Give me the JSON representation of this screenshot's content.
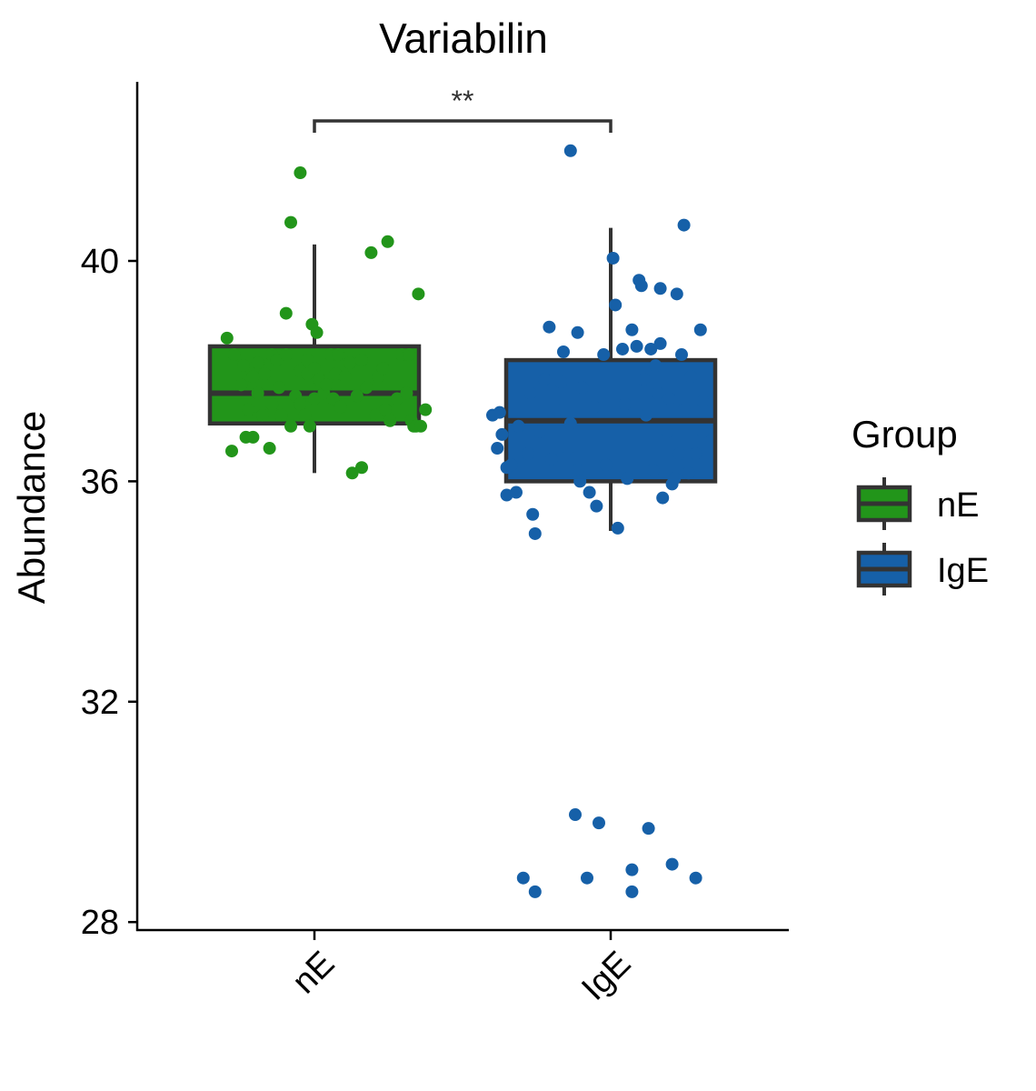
{
  "chart_data": {
    "type": "box",
    "title": "Variabilin",
    "xlabel": "",
    "ylabel": "Abundance",
    "ylim": [
      27.9,
      43.2
    ],
    "yticks": [
      28,
      32,
      36,
      40
    ],
    "categories": [
      "nE",
      "IgE"
    ],
    "legend": {
      "title": "Group",
      "placement": "right",
      "entries": [
        "nE",
        "IgE"
      ]
    },
    "significance": {
      "label": "**",
      "between": [
        "nE",
        "IgE"
      ]
    },
    "series": [
      {
        "name": "nE",
        "color": "#22951a",
        "box": {
          "whisker_low": 36.15,
          "q1": 37.05,
          "median": 37.6,
          "q3": 38.45,
          "whisker_high": 40.3
        },
        "points": [
          {
            "dx": -0.37,
            "y": 38.6
          },
          {
            "dx": -0.35,
            "y": 36.55
          },
          {
            "dx": -0.34,
            "y": 38.3
          },
          {
            "dx": -0.31,
            "y": 37.75
          },
          {
            "dx": -0.3,
            "y": 38.1
          },
          {
            "dx": -0.29,
            "y": 36.8
          },
          {
            "dx": -0.28,
            "y": 37.3
          },
          {
            "dx": -0.26,
            "y": 36.8
          },
          {
            "dx": -0.26,
            "y": 37.9
          },
          {
            "dx": -0.24,
            "y": 37.6
          },
          {
            "dx": -0.22,
            "y": 37.2
          },
          {
            "dx": -0.24,
            "y": 38.15
          },
          {
            "dx": -0.19,
            "y": 36.6
          },
          {
            "dx": -0.18,
            "y": 37.4
          },
          {
            "dx": -0.21,
            "y": 37.95
          },
          {
            "dx": -0.18,
            "y": 38.3
          },
          {
            "dx": -0.16,
            "y": 38.2
          },
          {
            "dx": -0.15,
            "y": 37.7
          },
          {
            "dx": -0.14,
            "y": 37.2
          },
          {
            "dx": -0.12,
            "y": 39.05
          },
          {
            "dx": -0.12,
            "y": 38.3
          },
          {
            "dx": -0.1,
            "y": 37.0
          },
          {
            "dx": -0.1,
            "y": 40.7
          },
          {
            "dx": -0.08,
            "y": 37.55
          },
          {
            "dx": -0.06,
            "y": 38.0
          },
          {
            "dx": -0.06,
            "y": 37.4
          },
          {
            "dx": -0.04,
            "y": 37.2
          },
          {
            "dx": -0.03,
            "y": 38.2
          },
          {
            "dx": -0.03,
            "y": 37.95
          },
          {
            "dx": -0.02,
            "y": 37.0
          },
          {
            "dx": -0.01,
            "y": 38.85
          },
          {
            "dx": 0.0,
            "y": 37.5
          },
          {
            "dx": 0.01,
            "y": 38.7
          },
          {
            "dx": 0.0,
            "y": 38.05
          },
          {
            "dx": -0.06,
            "y": 41.6
          },
          {
            "dx": 0.02,
            "y": 37.85
          },
          {
            "dx": 0.04,
            "y": 37.6
          },
          {
            "dx": 0.05,
            "y": 37.75
          },
          {
            "dx": 0.07,
            "y": 38.3
          },
          {
            "dx": 0.08,
            "y": 37.5
          },
          {
            "dx": 0.09,
            "y": 37.95
          },
          {
            "dx": 0.1,
            "y": 38.3
          },
          {
            "dx": 0.11,
            "y": 37.35
          },
          {
            "dx": 0.13,
            "y": 37.9
          },
          {
            "dx": 0.15,
            "y": 38.15
          },
          {
            "dx": 0.16,
            "y": 36.15
          },
          {
            "dx": 0.18,
            "y": 37.55
          },
          {
            "dx": 0.2,
            "y": 38.2
          },
          {
            "dx": 0.2,
            "y": 36.25
          },
          {
            "dx": 0.22,
            "y": 37.7
          },
          {
            "dx": 0.24,
            "y": 40.15
          },
          {
            "dx": 0.26,
            "y": 37.2
          },
          {
            "dx": 0.27,
            "y": 37.9
          },
          {
            "dx": 0.29,
            "y": 38.05
          },
          {
            "dx": 0.3,
            "y": 37.3
          },
          {
            "dx": 0.31,
            "y": 40.35
          },
          {
            "dx": 0.32,
            "y": 37.1
          },
          {
            "dx": 0.35,
            "y": 37.5
          },
          {
            "dx": 0.37,
            "y": 38.3
          },
          {
            "dx": 0.39,
            "y": 37.6
          },
          {
            "dx": 0.4,
            "y": 38.3
          },
          {
            "dx": 0.41,
            "y": 37.1
          },
          {
            "dx": 0.42,
            "y": 37.0
          },
          {
            "dx": 0.43,
            "y": 37.0
          },
          {
            "dx": 0.44,
            "y": 39.4
          },
          {
            "dx": 0.45,
            "y": 37.0
          },
          {
            "dx": 0.47,
            "y": 37.3
          }
        ]
      },
      {
        "name": "IgE",
        "color": "#1660a8",
        "box": {
          "whisker_low": 35.1,
          "q1": 36.0,
          "median": 37.1,
          "q3": 38.2,
          "whisker_high": 40.6
        },
        "points": [
          {
            "dx": -0.5,
            "y": 37.2
          },
          {
            "dx": -0.48,
            "y": 36.6
          },
          {
            "dx": -0.47,
            "y": 37.25
          },
          {
            "dx": -0.46,
            "y": 36.85
          },
          {
            "dx": -0.44,
            "y": 36.25
          },
          {
            "dx": -0.44,
            "y": 35.75
          },
          {
            "dx": -0.42,
            "y": 36.3
          },
          {
            "dx": -0.4,
            "y": 35.8
          },
          {
            "dx": -0.39,
            "y": 37.0
          },
          {
            "dx": -0.37,
            "y": 28.8
          },
          {
            "dx": -0.35,
            "y": 36.5
          },
          {
            "dx": -0.34,
            "y": 37.6
          },
          {
            "dx": -0.33,
            "y": 35.4
          },
          {
            "dx": -0.32,
            "y": 35.05
          },
          {
            "dx": -0.32,
            "y": 28.55
          },
          {
            "dx": -0.3,
            "y": 36.9
          },
          {
            "dx": -0.28,
            "y": 37.85
          },
          {
            "dx": -0.26,
            "y": 38.8
          },
          {
            "dx": -0.25,
            "y": 36.4
          },
          {
            "dx": -0.23,
            "y": 37.3
          },
          {
            "dx": -0.21,
            "y": 37.8
          },
          {
            "dx": -0.2,
            "y": 38.35
          },
          {
            "dx": -0.18,
            "y": 36.6
          },
          {
            "dx": -0.17,
            "y": 37.05
          },
          {
            "dx": -0.17,
            "y": 42.0
          },
          {
            "dx": -0.15,
            "y": 29.95
          },
          {
            "dx": -0.14,
            "y": 38.7
          },
          {
            "dx": -0.14,
            "y": 36.2
          },
          {
            "dx": -0.13,
            "y": 36.0
          },
          {
            "dx": -0.12,
            "y": 37.7
          },
          {
            "dx": -0.1,
            "y": 28.8
          },
          {
            "dx": -0.09,
            "y": 35.8
          },
          {
            "dx": -0.07,
            "y": 37.35
          },
          {
            "dx": -0.06,
            "y": 35.55
          },
          {
            "dx": -0.05,
            "y": 29.8
          },
          {
            "dx": -0.03,
            "y": 38.3
          },
          {
            "dx": -0.02,
            "y": 36.3
          },
          {
            "dx": 0.01,
            "y": 40.05
          },
          {
            "dx": 0.02,
            "y": 39.2
          },
          {
            "dx": 0.03,
            "y": 35.15
          },
          {
            "dx": 0.05,
            "y": 38.4
          },
          {
            "dx": 0.06,
            "y": 37.4
          },
          {
            "dx": 0.07,
            "y": 36.05
          },
          {
            "dx": 0.09,
            "y": 28.55
          },
          {
            "dx": 0.09,
            "y": 28.95
          },
          {
            "dx": 0.09,
            "y": 38.75
          },
          {
            "dx": 0.11,
            "y": 38.45
          },
          {
            "dx": 0.12,
            "y": 39.65
          },
          {
            "dx": 0.13,
            "y": 39.55
          },
          {
            "dx": 0.14,
            "y": 37.85
          },
          {
            "dx": 0.15,
            "y": 37.2
          },
          {
            "dx": 0.16,
            "y": 29.7
          },
          {
            "dx": 0.17,
            "y": 38.4
          },
          {
            "dx": 0.18,
            "y": 36.2
          },
          {
            "dx": 0.19,
            "y": 38.1
          },
          {
            "dx": 0.2,
            "y": 37.6
          },
          {
            "dx": 0.21,
            "y": 38.5
          },
          {
            "dx": 0.21,
            "y": 39.5
          },
          {
            "dx": 0.22,
            "y": 35.7
          },
          {
            "dx": 0.24,
            "y": 36.9
          },
          {
            "dx": 0.25,
            "y": 37.5
          },
          {
            "dx": 0.26,
            "y": 35.95
          },
          {
            "dx": 0.26,
            "y": 29.05
          },
          {
            "dx": 0.27,
            "y": 36.05
          },
          {
            "dx": 0.28,
            "y": 39.4
          },
          {
            "dx": 0.29,
            "y": 36.5
          },
          {
            "dx": 0.3,
            "y": 38.3
          },
          {
            "dx": 0.31,
            "y": 37.3
          },
          {
            "dx": 0.33,
            "y": 36.15
          },
          {
            "dx": 0.31,
            "y": 40.65
          },
          {
            "dx": 0.34,
            "y": 37.9
          },
          {
            "dx": 0.36,
            "y": 28.8
          },
          {
            "dx": 0.36,
            "y": 36.5
          },
          {
            "dx": 0.38,
            "y": 38.75
          },
          {
            "dx": 0.39,
            "y": 37.45
          },
          {
            "dx": 0.39,
            "y": 36.9
          }
        ]
      }
    ]
  }
}
